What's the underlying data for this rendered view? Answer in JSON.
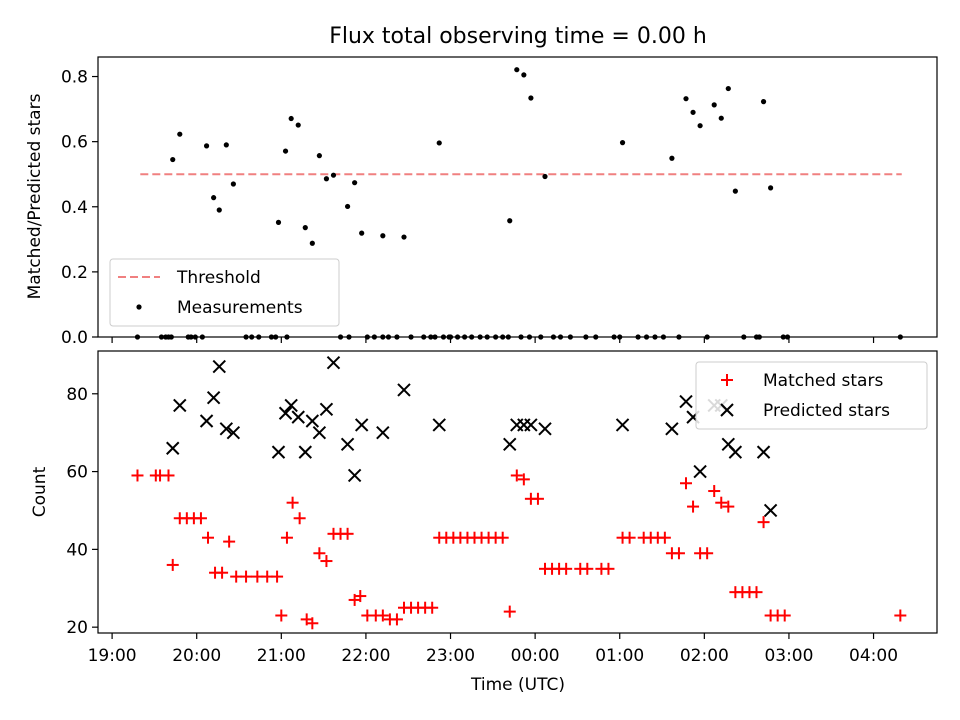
{
  "chart_data": [
    {
      "type": "scatter",
      "title": "Flux total observing time = 0.00 h",
      "xlabel": "",
      "ylabel": "Matched/Predicted stars",
      "xlim": [
        "18:50",
        "04:45"
      ],
      "ylim": [
        0,
        0.86
      ],
      "yticks": [
        0.0,
        0.2,
        0.4,
        0.6,
        0.8
      ],
      "ytick_labels": [
        "0.0",
        "0.2",
        "0.4",
        "0.6",
        "0.8"
      ],
      "legend": {
        "position": "lower-left",
        "entries": [
          "Threshold",
          "Measurements"
        ]
      },
      "threshold": {
        "y": 0.5,
        "x": [
          "19:20",
          "04:20"
        ],
        "color": "#f08080"
      },
      "series": [
        {
          "name": "Measurements",
          "color": "#000000",
          "marker": "dot",
          "points": [
            [
              "19:18",
              0
            ],
            [
              "19:35",
              0
            ],
            [
              "19:38",
              0
            ],
            [
              "19:40",
              0
            ],
            [
              "19:42",
              0
            ],
            [
              "19:54",
              0
            ],
            [
              "19:56",
              0
            ],
            [
              "19:59",
              0
            ],
            [
              "20:04",
              0
            ],
            [
              "20:35",
              0
            ],
            [
              "20:39",
              0
            ],
            [
              "20:44",
              0
            ],
            [
              "20:53",
              0
            ],
            [
              "20:56",
              0
            ],
            [
              "21:04",
              0
            ],
            [
              "21:42",
              0
            ],
            [
              "21:48",
              0
            ],
            [
              "22:01",
              0
            ],
            [
              "22:06",
              0
            ],
            [
              "22:12",
              0
            ],
            [
              "22:16",
              0
            ],
            [
              "22:22",
              0
            ],
            [
              "22:32",
              0
            ],
            [
              "22:41",
              0
            ],
            [
              "22:46",
              0
            ],
            [
              "22:49",
              0
            ],
            [
              "22:55",
              0
            ],
            [
              "22:59",
              0
            ],
            [
              "23:00",
              0
            ],
            [
              "23:05",
              0
            ],
            [
              "23:10",
              0
            ],
            [
              "23:15",
              0
            ],
            [
              "23:21",
              0
            ],
            [
              "23:26",
              0
            ],
            [
              "23:32",
              0
            ],
            [
              "23:37",
              0
            ],
            [
              "23:41",
              0
            ],
            [
              "23:50",
              0
            ],
            [
              "23:56",
              0
            ],
            [
              "00:04",
              0
            ],
            [
              "00:13",
              0
            ],
            [
              "00:18",
              0
            ],
            [
              "00:25",
              0
            ],
            [
              "00:36",
              0
            ],
            [
              "00:43",
              0
            ],
            [
              "00:56",
              0
            ],
            [
              "01:00",
              0
            ],
            [
              "01:13",
              0
            ],
            [
              "01:19",
              0
            ],
            [
              "01:25",
              0
            ],
            [
              "01:31",
              0
            ],
            [
              "01:42",
              0
            ],
            [
              "02:02",
              0
            ],
            [
              "02:28",
              0
            ],
            [
              "02:37",
              0
            ],
            [
              "02:39",
              0
            ],
            [
              "02:56",
              0
            ],
            [
              "02:59",
              0
            ],
            [
              "04:19",
              0
            ],
            [
              "19:43",
              0.545
            ],
            [
              "19:48",
              0.623
            ],
            [
              "20:07",
              0.587
            ],
            [
              "20:12",
              0.428
            ],
            [
              "20:16",
              0.39
            ],
            [
              "20:21",
              0.59
            ],
            [
              "20:26",
              0.47
            ],
            [
              "20:58",
              0.352
            ],
            [
              "21:03",
              0.571
            ],
            [
              "21:07",
              0.671
            ],
            [
              "21:12",
              0.651
            ],
            [
              "21:17",
              0.336
            ],
            [
              "21:22",
              0.288
            ],
            [
              "21:27",
              0.557
            ],
            [
              "21:32",
              0.486
            ],
            [
              "21:37",
              0.497
            ],
            [
              "21:47",
              0.401
            ],
            [
              "21:52",
              0.474
            ],
            [
              "21:57",
              0.319
            ],
            [
              "22:12",
              0.311
            ],
            [
              "22:27",
              0.307
            ],
            [
              "22:52",
              0.596
            ],
            [
              "23:42",
              0.357
            ],
            [
              "23:47",
              0.821
            ],
            [
              "23:52",
              0.805
            ],
            [
              "23:57",
              0.734
            ],
            [
              "00:07",
              0.493
            ],
            [
              "01:02",
              0.597
            ],
            [
              "01:37",
              0.549
            ],
            [
              "01:47",
              0.732
            ],
            [
              "01:52",
              0.69
            ],
            [
              "01:57",
              0.649
            ],
            [
              "02:07",
              0.713
            ],
            [
              "02:12",
              0.672
            ],
            [
              "02:17",
              0.763
            ],
            [
              "02:22",
              0.448
            ],
            [
              "02:42",
              0.723
            ],
            [
              "02:47",
              0.458
            ]
          ]
        }
      ]
    },
    {
      "type": "scatter",
      "title": "",
      "xlabel": "Time (UTC)",
      "ylabel": "Count",
      "xlim": [
        "18:50",
        "04:45"
      ],
      "ylim": [
        18.5,
        91
      ],
      "yticks": [
        20,
        40,
        60,
        80
      ],
      "ytick_labels": [
        "20",
        "40",
        "60",
        "80"
      ],
      "xticks": [
        "19:00",
        "20:00",
        "21:00",
        "22:00",
        "23:00",
        "00:00",
        "01:00",
        "02:00",
        "03:00",
        "04:00"
      ],
      "legend": {
        "position": "top-right",
        "entries": [
          "Matched stars",
          "Predicted stars"
        ]
      },
      "series": [
        {
          "name": "Matched stars",
          "color": "#ff0000",
          "marker": "plus",
          "points": [
            [
              "19:18",
              59
            ],
            [
              "19:31",
              59
            ],
            [
              "19:34",
              59
            ],
            [
              "19:40",
              59
            ],
            [
              "19:43",
              36
            ],
            [
              "19:48",
              48
            ],
            [
              "19:53",
              48
            ],
            [
              "19:58",
              48
            ],
            [
              "20:03",
              48
            ],
            [
              "20:08",
              43
            ],
            [
              "20:13",
              34
            ],
            [
              "20:18",
              34
            ],
            [
              "20:23",
              42
            ],
            [
              "20:28",
              33
            ],
            [
              "20:35",
              33
            ],
            [
              "20:43",
              33
            ],
            [
              "20:50",
              33
            ],
            [
              "20:57",
              33
            ],
            [
              "21:00",
              23
            ],
            [
              "21:04",
              43
            ],
            [
              "21:08",
              52
            ],
            [
              "21:13",
              48
            ],
            [
              "21:18",
              22
            ],
            [
              "21:22",
              21
            ],
            [
              "21:27",
              39
            ],
            [
              "21:32",
              37
            ],
            [
              "21:37",
              44
            ],
            [
              "21:42",
              44
            ],
            [
              "21:47",
              44
            ],
            [
              "21:52",
              27
            ],
            [
              "21:56",
              28
            ],
            [
              "22:01",
              23
            ],
            [
              "22:07",
              23
            ],
            [
              "22:12",
              23
            ],
            [
              "22:17",
              22
            ],
            [
              "22:22",
              22
            ],
            [
              "22:27",
              25
            ],
            [
              "22:32",
              25
            ],
            [
              "22:37",
              25
            ],
            [
              "22:42",
              25
            ],
            [
              "22:47",
              25
            ],
            [
              "22:52",
              43
            ],
            [
              "22:57",
              43
            ],
            [
              "23:02",
              43
            ],
            [
              "23:07",
              43
            ],
            [
              "23:12",
              43
            ],
            [
              "23:17",
              43
            ],
            [
              "23:22",
              43
            ],
            [
              "23:27",
              43
            ],
            [
              "23:32",
              43
            ],
            [
              "23:37",
              43
            ],
            [
              "23:42",
              24
            ],
            [
              "23:47",
              59
            ],
            [
              "23:52",
              58
            ],
            [
              "23:57",
              53
            ],
            [
              "00:02",
              53
            ],
            [
              "00:07",
              35
            ],
            [
              "00:12",
              35
            ],
            [
              "00:17",
              35
            ],
            [
              "00:22",
              35
            ],
            [
              "00:32",
              35
            ],
            [
              "00:37",
              35
            ],
            [
              "00:47",
              35
            ],
            [
              "00:52",
              35
            ],
            [
              "01:02",
              43
            ],
            [
              "01:07",
              43
            ],
            [
              "01:17",
              43
            ],
            [
              "01:22",
              43
            ],
            [
              "01:27",
              43
            ],
            [
              "01:32",
              43
            ],
            [
              "01:37",
              39
            ],
            [
              "01:42",
              39
            ],
            [
              "01:47",
              57
            ],
            [
              "01:52",
              51
            ],
            [
              "01:57",
              39
            ],
            [
              "02:02",
              39
            ],
            [
              "02:07",
              55
            ],
            [
              "02:12",
              52
            ],
            [
              "02:17",
              51
            ],
            [
              "02:22",
              29
            ],
            [
              "02:27",
              29
            ],
            [
              "02:32",
              29
            ],
            [
              "02:37",
              29
            ],
            [
              "02:42",
              47
            ],
            [
              "02:47",
              23
            ],
            [
              "02:52",
              23
            ],
            [
              "02:57",
              23
            ],
            [
              "04:19",
              23
            ]
          ]
        },
        {
          "name": "Predicted stars",
          "color": "#000000",
          "marker": "x",
          "points": [
            [
              "19:43",
              66
            ],
            [
              "19:48",
              77
            ],
            [
              "20:07",
              73
            ],
            [
              "20:12",
              79
            ],
            [
              "20:16",
              87
            ],
            [
              "20:21",
              71
            ],
            [
              "20:26",
              70
            ],
            [
              "20:58",
              65
            ],
            [
              "21:03",
              75
            ],
            [
              "21:07",
              77
            ],
            [
              "21:12",
              74
            ],
            [
              "21:17",
              65
            ],
            [
              "21:22",
              73
            ],
            [
              "21:27",
              70
            ],
            [
              "21:32",
              76
            ],
            [
              "21:37",
              88
            ],
            [
              "21:47",
              67
            ],
            [
              "21:52",
              59
            ],
            [
              "21:57",
              72
            ],
            [
              "22:12",
              70
            ],
            [
              "22:27",
              81
            ],
            [
              "22:52",
              72
            ],
            [
              "23:42",
              67
            ],
            [
              "23:47",
              72
            ],
            [
              "23:52",
              72
            ],
            [
              "23:57",
              72
            ],
            [
              "00:07",
              71
            ],
            [
              "01:02",
              72
            ],
            [
              "01:37",
              71
            ],
            [
              "01:47",
              78
            ],
            [
              "01:52",
              74
            ],
            [
              "01:57",
              60
            ],
            [
              "02:07",
              77
            ],
            [
              "02:12",
              77
            ],
            [
              "02:17",
              67
            ],
            [
              "02:22",
              65
            ],
            [
              "02:42",
              65
            ],
            [
              "02:47",
              50
            ]
          ]
        }
      ]
    }
  ]
}
